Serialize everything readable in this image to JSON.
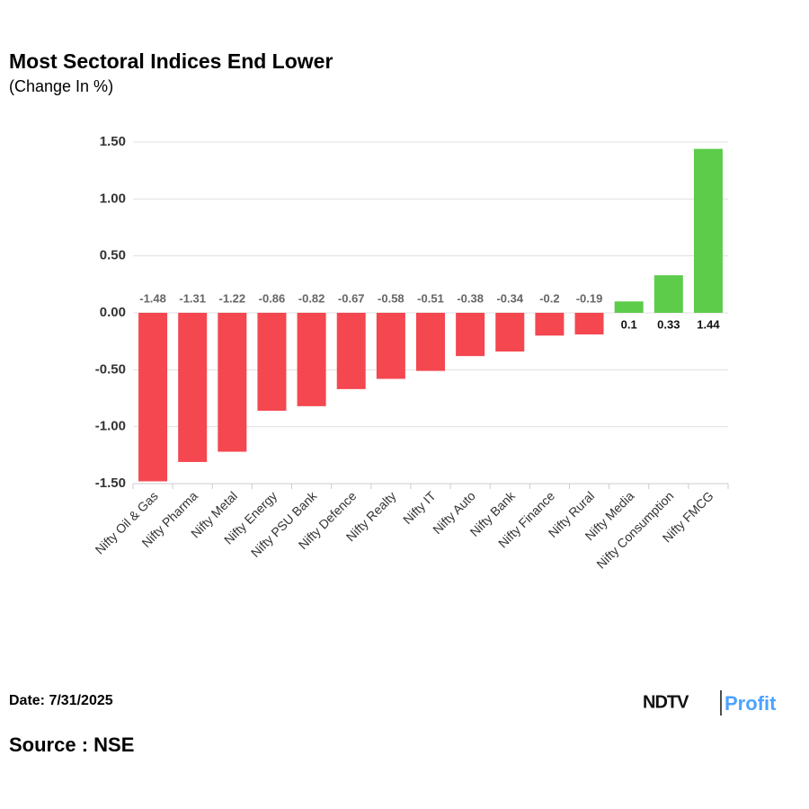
{
  "chart_data": {
    "type": "bar",
    "title": "Most Sectoral Indices End Lower",
    "subtitle": "(Change In %)",
    "categories": [
      "Nifty Oil & Gas",
      "Nifty Pharma",
      "Nifty Metal",
      "Nifty Energy",
      "Nifty PSU Bank",
      "Nifty Defence",
      "Nifty Realty",
      "Nifty IT",
      "Nifty Auto",
      "Nifty Bank",
      "Nifty Finance",
      "Nifty Rural",
      "Nifty Media",
      "Nifty Consumption",
      "Nifty FMCG"
    ],
    "values": [
      -1.48,
      -1.31,
      -1.22,
      -0.86,
      -0.82,
      -0.67,
      -0.58,
      -0.51,
      -0.38,
      -0.34,
      -0.2,
      -0.19,
      0.1,
      0.33,
      1.44
    ],
    "negative_color": "#f4474f",
    "positive_color": "#5ccc4a",
    "ylim": [
      -1.5,
      1.5
    ],
    "yticks": [
      {
        "value": -1.5,
        "label": "-1.50"
      },
      {
        "value": -1,
        "label": "-1.00"
      },
      {
        "value": -0.5,
        "label": "-0.50"
      },
      {
        "value": 0,
        "label": "0.00"
      },
      {
        "value": 0.5,
        "label": "0.50"
      },
      {
        "value": 1,
        "label": "1.00"
      },
      {
        "value": 1.5,
        "label": "1.50"
      }
    ],
    "grid": true
  },
  "footer": {
    "date": "Date: 7/31/2025",
    "source": "Source : NSE",
    "logo_left": "NDTV",
    "logo_right": "Profit"
  }
}
